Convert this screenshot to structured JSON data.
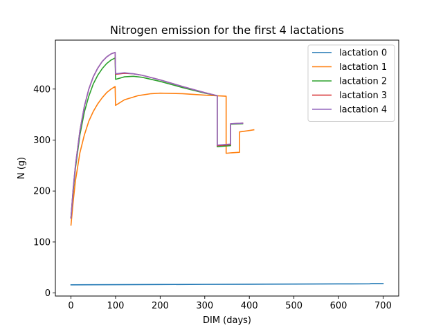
{
  "chart_data": {
    "type": "line",
    "title": "Nitrogen emission for the first 4 lactations",
    "xlabel": "DIM (days)",
    "ylabel": "N (g)",
    "xlim": [
      -35,
      735
    ],
    "ylim": [
      -6,
      496
    ],
    "xticks": [
      0,
      100,
      200,
      300,
      400,
      500,
      600,
      700
    ],
    "yticks": [
      0,
      100,
      200,
      300,
      400
    ],
    "grid": false,
    "legend_position": "top-right",
    "series": [
      {
        "name": "lactation 0",
        "color": "#1f77b4",
        "points": [
          [
            0,
            16
          ],
          [
            100,
            16.3
          ],
          [
            200,
            16.6
          ],
          [
            300,
            16.9
          ],
          [
            400,
            17.2
          ],
          [
            500,
            17.5
          ],
          [
            600,
            17.8
          ],
          [
            670,
            18
          ],
          [
            675,
            18.3
          ],
          [
            700,
            18.3
          ]
        ]
      },
      {
        "name": "lactation 1",
        "color": "#ff7f0e",
        "points": [
          [
            0,
            133
          ],
          [
            5,
            180
          ],
          [
            10,
            220
          ],
          [
            20,
            275
          ],
          [
            30,
            310
          ],
          [
            40,
            337
          ],
          [
            50,
            356
          ],
          [
            60,
            371
          ],
          [
            70,
            383
          ],
          [
            80,
            393
          ],
          [
            90,
            400
          ],
          [
            99,
            405
          ],
          [
            100,
            368
          ],
          [
            120,
            379
          ],
          [
            150,
            387
          ],
          [
            180,
            391
          ],
          [
            200,
            392
          ],
          [
            250,
            391
          ],
          [
            300,
            388
          ],
          [
            347,
            386
          ],
          [
            348,
            386
          ],
          [
            348,
            274
          ],
          [
            360,
            275
          ],
          [
            378,
            276
          ],
          [
            378,
            316
          ],
          [
            395,
            318
          ],
          [
            410,
            320
          ]
        ]
      },
      {
        "name": "lactation 2",
        "color": "#2ca02c",
        "points": [
          [
            0,
            148
          ],
          [
            5,
            200
          ],
          [
            10,
            245
          ],
          [
            20,
            310
          ],
          [
            30,
            355
          ],
          [
            40,
            386
          ],
          [
            50,
            410
          ],
          [
            60,
            427
          ],
          [
            70,
            440
          ],
          [
            80,
            450
          ],
          [
            90,
            457
          ],
          [
            99,
            461
          ],
          [
            100,
            419
          ],
          [
            120,
            424
          ],
          [
            140,
            425
          ],
          [
            160,
            423
          ],
          [
            200,
            415
          ],
          [
            250,
            403
          ],
          [
            300,
            392
          ],
          [
            328,
            387
          ],
          [
            328,
            287
          ],
          [
            358,
            289
          ],
          [
            358,
            331
          ],
          [
            385,
            332
          ]
        ]
      },
      {
        "name": "lactation 3",
        "color": "#d62728",
        "points": [
          [
            0,
            147
          ],
          [
            5,
            205
          ],
          [
            10,
            250
          ],
          [
            20,
            318
          ],
          [
            30,
            366
          ],
          [
            40,
            400
          ],
          [
            50,
            424
          ],
          [
            60,
            441
          ],
          [
            70,
            454
          ],
          [
            80,
            463
          ],
          [
            90,
            469
          ],
          [
            99,
            472
          ],
          [
            100,
            429
          ],
          [
            120,
            431
          ],
          [
            140,
            430
          ],
          [
            160,
            427
          ],
          [
            200,
            418
          ],
          [
            250,
            405
          ],
          [
            300,
            393
          ],
          [
            328,
            387
          ],
          [
            328,
            289
          ],
          [
            358,
            291
          ],
          [
            358,
            332
          ],
          [
            385,
            333
          ]
        ]
      },
      {
        "name": "lactation 4",
        "color": "#9467bd",
        "points": [
          [
            0,
            147
          ],
          [
            5,
            205
          ],
          [
            10,
            250
          ],
          [
            20,
            318
          ],
          [
            30,
            366
          ],
          [
            40,
            400
          ],
          [
            50,
            424
          ],
          [
            60,
            441
          ],
          [
            70,
            454
          ],
          [
            80,
            463
          ],
          [
            90,
            469
          ],
          [
            99,
            472
          ],
          [
            100,
            430
          ],
          [
            120,
            432
          ],
          [
            140,
            430
          ],
          [
            160,
            427
          ],
          [
            200,
            418
          ],
          [
            250,
            405
          ],
          [
            300,
            393
          ],
          [
            328,
            387
          ],
          [
            328,
            290
          ],
          [
            358,
            292
          ],
          [
            358,
            332
          ],
          [
            385,
            333
          ]
        ]
      }
    ]
  }
}
